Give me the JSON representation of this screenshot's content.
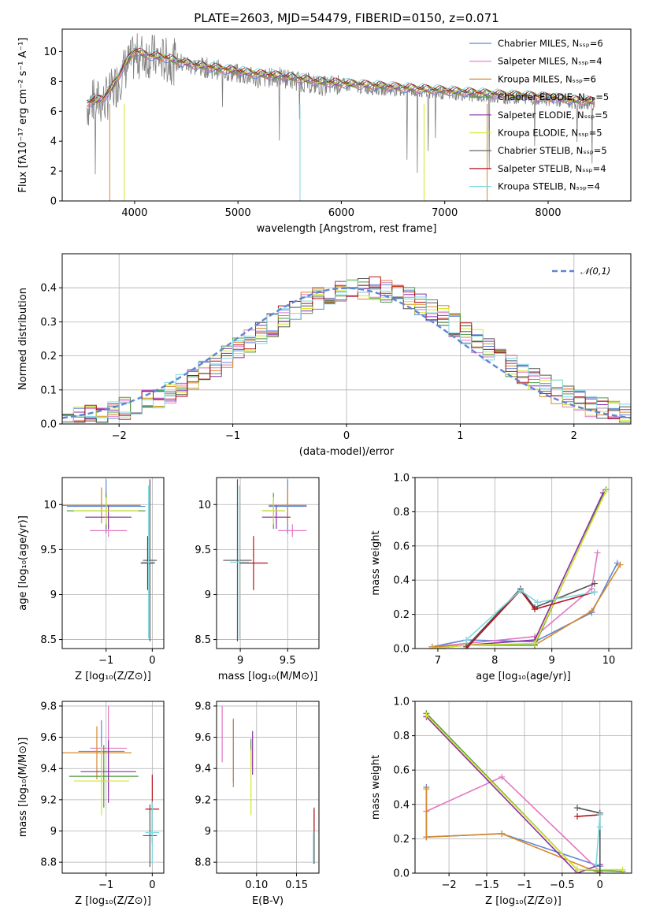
{
  "figure": {
    "title": "PLATE=2603, MJD=54479, FIBERID=0150, z=0.071"
  },
  "chart_data": [
    {
      "id": "spectrum",
      "type": "line",
      "xlabel": "wavelength [Angstrom, rest frame]",
      "ylabel": "Flux [fλ10⁻¹⁷ erg cm⁻² s⁻¹ A⁻¹]",
      "xlim": [
        3300,
        8800
      ],
      "ylim": [
        0,
        11.5
      ],
      "xticks": [
        4000,
        5000,
        6000,
        7000,
        8000
      ],
      "yticks": [
        0,
        2,
        4,
        6,
        8,
        10
      ],
      "grid": false,
      "legend_position": "upper-right",
      "data_trace": {
        "name": "",
        "color": "#808080",
        "x": [
          3540,
          3600,
          3700,
          3800,
          3900,
          4000,
          4100,
          4200,
          4300,
          4400,
          4600,
          4800,
          5000,
          5200,
          5400,
          5600,
          5800,
          6000,
          6200,
          6400,
          6600,
          6800,
          7000,
          7200,
          7400,
          7600,
          7800,
          8000,
          8200,
          8400
        ],
        "y": [
          6.3,
          6.7,
          6.6,
          7.5,
          8.8,
          9.6,
          9.8,
          9.6,
          9.4,
          9.3,
          9.0,
          8.8,
          8.5,
          8.2,
          8.3,
          8.0,
          7.7,
          7.8,
          7.6,
          7.5,
          7.4,
          7.3,
          7.2,
          7.1,
          7.0,
          6.9,
          6.9,
          6.8,
          6.6,
          6.5
        ]
      },
      "series": [
        {
          "name": "Chabrier MILES, Nₛₛₚ=6",
          "color": "#5e86d6"
        },
        {
          "name": "Salpeter MILES, Nₛₛₚ=4",
          "color": "#e377c2"
        },
        {
          "name": "Kroupa MILES, Nₛₛₚ=6",
          "color": "#d6882c"
        },
        {
          "name": "Chabrier ELODIE, Nₛₛₚ=5",
          "color": "#4a9a3e"
        },
        {
          "name": "Salpeter ELODIE, Nₛₛₚ=5",
          "color": "#8b2fa8"
        },
        {
          "name": "Kroupa ELODIE, Nₛₛₚ=5",
          "color": "#d4e62a"
        },
        {
          "name": "Chabrier STELIB, Nₛₛₚ=5",
          "color": "#555555"
        },
        {
          "name": "Salpeter STELIB, Nₛₛₚ=4",
          "color": "#b5121b"
        },
        {
          "name": "Kroupa STELIB, Nₛₛₚ=4",
          "color": "#7fd8e0"
        }
      ],
      "model_x": [
        3540,
        3600,
        3700,
        3800,
        3900,
        4000,
        4100,
        4200,
        4300,
        4400,
        4600,
        4800,
        5000,
        5200,
        5400,
        5600,
        5800,
        6000,
        6200,
        6400,
        6600,
        6800,
        7000,
        7200,
        7400,
        7600,
        7800,
        8000,
        8200,
        8400
      ],
      "model_y": [
        6.4,
        6.5,
        6.7,
        7.6,
        8.9,
        9.9,
        9.6,
        9.5,
        9.4,
        9.2,
        8.9,
        8.7,
        8.5,
        8.3,
        8.2,
        8.0,
        7.8,
        7.7,
        7.6,
        7.5,
        7.4,
        7.3,
        7.2,
        7.1,
        7.0,
        6.9,
        6.85,
        6.75,
        6.6,
        6.5
      ]
    },
    {
      "id": "residuals",
      "type": "line",
      "xlabel": "(data-model)/error",
      "ylabel": "Normed distribution",
      "xlim": [
        -2.5,
        2.5
      ],
      "ylim": [
        0,
        0.5
      ],
      "xticks": [
        -2,
        -1,
        0,
        1,
        2
      ],
      "yticks": [
        0.0,
        0.1,
        0.2,
        0.3,
        0.4
      ],
      "grid": true,
      "legend": [
        {
          "name": "𝒩(0,1)",
          "color": "#5e86d6",
          "style": "dashed"
        }
      ],
      "legend_position": "upper-right",
      "bin_centers": [
        -2.4,
        -2.2,
        -2.0,
        -1.8,
        -1.6,
        -1.4,
        -1.2,
        -1.0,
        -0.8,
        -0.6,
        -0.4,
        -0.2,
        0.0,
        0.2,
        0.4,
        0.6,
        0.8,
        1.0,
        1.2,
        1.4,
        1.6,
        1.8,
        2.0,
        2.2,
        2.4
      ],
      "hist_values": [
        0.02,
        0.035,
        0.055,
        0.085,
        0.115,
        0.16,
        0.2,
        0.25,
        0.29,
        0.32,
        0.34,
        0.37,
        0.39,
        0.43,
        0.41,
        0.37,
        0.32,
        0.27,
        0.22,
        0.17,
        0.12,
        0.08,
        0.05,
        0.035,
        0.02
      ]
    },
    {
      "id": "age-vs-Z",
      "type": "scatter",
      "xlabel": "Z [log₁₀(Z/Z⊙)]",
      "ylabel": "age  [log₁₀(age/yr)]",
      "xlim": [
        -1.95,
        0.25
      ],
      "ylim": [
        8.4,
        10.3
      ],
      "xticks": [
        -1,
        0
      ],
      "yticks": [
        8.5,
        9.0,
        9.5,
        10.0
      ],
      "grid": true,
      "points": [
        {
          "x": -1.0,
          "y": 9.98,
          "xerr": 0.85,
          "yerr": 0.3,
          "color": "#5e86d6"
        },
        {
          "x": -0.95,
          "y": 9.71,
          "xerr": 0.4,
          "yerr": 0.07,
          "color": "#e377c2"
        },
        {
          "x": -1.1,
          "y": 9.99,
          "xerr": 0.85,
          "yerr": 0.2,
          "color": "#d6882c"
        },
        {
          "x": -1.0,
          "y": 9.93,
          "xerr": 0.85,
          "yerr": 0.2,
          "color": "#4a9a3e"
        },
        {
          "x": -0.95,
          "y": 9.86,
          "xerr": 0.5,
          "yerr": 0.13,
          "color": "#8b2fa8"
        },
        {
          "x": -1.0,
          "y": 9.93,
          "xerr": 0.7,
          "yerr": 0.15,
          "color": "#d4e62a"
        },
        {
          "x": -0.05,
          "y": 9.38,
          "xerr": 0.15,
          "yerr": 0.9,
          "color": "#555555"
        },
        {
          "x": -0.1,
          "y": 9.35,
          "xerr": 0.15,
          "yerr": 0.3,
          "color": "#b5121b"
        },
        {
          "x": -0.08,
          "y": 9.36,
          "xerr": 0.15,
          "yerr": 0.85,
          "color": "#7fd8e0"
        }
      ]
    },
    {
      "id": "age-vs-mass",
      "type": "scatter",
      "xlabel": "mass [log₁₀(M/M⊙)]",
      "ylabel": "",
      "xlim": [
        8.75,
        9.83
      ],
      "ylim": [
        8.4,
        10.3
      ],
      "xticks": [
        9.0,
        9.5
      ],
      "yticks": [
        8.5,
        9.0,
        9.5,
        10.0
      ],
      "grid": true,
      "points": [
        {
          "x": 9.5,
          "y": 9.98,
          "xerr": 0.2,
          "yerr": 0.3,
          "color": "#5e86d6"
        },
        {
          "x": 9.55,
          "y": 9.71,
          "xerr": 0.15,
          "yerr": 0.07,
          "color": "#e377c2"
        },
        {
          "x": 9.5,
          "y": 9.99,
          "xerr": 0.2,
          "yerr": 0.2,
          "color": "#d6882c"
        },
        {
          "x": 9.35,
          "y": 9.93,
          "xerr": 0.12,
          "yerr": 0.2,
          "color": "#4a9a3e"
        },
        {
          "x": 9.38,
          "y": 9.86,
          "xerr": 0.15,
          "yerr": 0.13,
          "color": "#8b2fa8"
        },
        {
          "x": 9.35,
          "y": 9.93,
          "xerr": 0.12,
          "yerr": 0.15,
          "color": "#d4e62a"
        },
        {
          "x": 8.97,
          "y": 9.38,
          "xerr": 0.15,
          "yerr": 0.9,
          "color": "#555555"
        },
        {
          "x": 9.14,
          "y": 9.35,
          "xerr": 0.15,
          "yerr": 0.3,
          "color": "#b5121b"
        },
        {
          "x": 8.99,
          "y": 9.36,
          "xerr": 0.1,
          "yerr": 0.85,
          "color": "#7fd8e0"
        }
      ]
    },
    {
      "id": "weight-vs-age",
      "type": "line",
      "xlabel": "age  [log₁₀(age/yr)]",
      "ylabel": "mass weight",
      "xlim": [
        6.6,
        10.4
      ],
      "ylim": [
        0,
        1.0
      ],
      "xticks": [
        7,
        8,
        9,
        10
      ],
      "yticks": [
        0.0,
        0.2,
        0.4,
        0.6,
        0.8,
        1.0
      ],
      "grid": true,
      "series": [
        {
          "color": "#5e86d6",
          "x": [
            6.9,
            7.5,
            8.7,
            9.7,
            10.15
          ],
          "y": [
            0.01,
            0.05,
            0.04,
            0.21,
            0.5
          ]
        },
        {
          "color": "#e377c2",
          "x": [
            6.9,
            7.5,
            8.7,
            9.7,
            9.8
          ],
          "y": [
            0.01,
            0.03,
            0.07,
            0.35,
            0.56
          ]
        },
        {
          "color": "#d6882c",
          "x": [
            6.9,
            7.5,
            8.7,
            9.7,
            10.2
          ],
          "y": [
            0.01,
            0.02,
            0.02,
            0.22,
            0.49
          ]
        },
        {
          "color": "#4a9a3e",
          "x": [
            6.9,
            7.5,
            8.7,
            9.95
          ],
          "y": [
            0.0,
            0.02,
            0.02,
            0.93
          ]
        },
        {
          "color": "#8b2fa8",
          "x": [
            6.9,
            7.5,
            8.7,
            9.9
          ],
          "y": [
            0.0,
            0.02,
            0.05,
            0.91
          ]
        },
        {
          "color": "#d4e62a",
          "x": [
            6.9,
            7.5,
            8.7,
            9.95
          ],
          "y": [
            0.0,
            0.02,
            0.03,
            0.92
          ]
        },
        {
          "color": "#555555",
          "x": [
            7.5,
            8.45,
            8.7,
            9.75
          ],
          "y": [
            0.01,
            0.35,
            0.24,
            0.38
          ]
        },
        {
          "color": "#b5121b",
          "x": [
            7.5,
            8.45,
            8.7,
            9.75
          ],
          "y": [
            0.0,
            0.34,
            0.23,
            0.33
          ]
        },
        {
          "color": "#7fd8e0",
          "x": [
            7.5,
            8.45,
            8.75,
            9.75
          ],
          "y": [
            0.05,
            0.34,
            0.27,
            0.33
          ]
        }
      ]
    },
    {
      "id": "mass-vs-Z",
      "type": "scatter",
      "xlabel": "Z [log₁₀(Z/Z⊙)]",
      "ylabel": "mass [log₁₀(M/M⊙)]",
      "xlim": [
        -1.95,
        0.25
      ],
      "ylim": [
        8.73,
        9.83
      ],
      "xticks": [
        -1,
        0
      ],
      "yticks": [
        8.8,
        9.0,
        9.2,
        9.4,
        9.6,
        9.8
      ],
      "grid": true,
      "points": [
        {
          "x": -1.1,
          "y": 9.51,
          "xerr": 0.5,
          "yerr": 0.2,
          "color": "#5e86d6"
        },
        {
          "x": -0.95,
          "y": 9.53,
          "xerr": 0.4,
          "yerr": 0.27,
          "color": "#e377c2"
        },
        {
          "x": -1.2,
          "y": 9.5,
          "xerr": 0.75,
          "yerr": 0.17,
          "color": "#d6882c"
        },
        {
          "x": -1.05,
          "y": 9.35,
          "xerr": 0.75,
          "yerr": 0.2,
          "color": "#4a9a3e"
        },
        {
          "x": -0.95,
          "y": 9.38,
          "xerr": 0.6,
          "yerr": 0.2,
          "color": "#8b2fa8"
        },
        {
          "x": -1.1,
          "y": 9.32,
          "xerr": 0.6,
          "yerr": 0.22,
          "color": "#d4e62a"
        },
        {
          "x": -0.05,
          "y": 8.97,
          "xerr": 0.15,
          "yerr": 0.2,
          "color": "#555555"
        },
        {
          "x": 0.0,
          "y": 9.14,
          "xerr": 0.15,
          "yerr": 0.22,
          "color": "#b5121b"
        },
        {
          "x": 0.0,
          "y": 8.99,
          "xerr": 0.15,
          "yerr": 0.2,
          "color": "#7fd8e0"
        }
      ]
    },
    {
      "id": "mass-vs-EBV",
      "type": "scatter",
      "xlabel": "E(B-V)",
      "ylabel": "",
      "xlim": [
        0.05,
        0.178
      ],
      "ylim": [
        8.73,
        9.83
      ],
      "xticks": [
        0.1,
        0.15
      ],
      "xtick_labels": [
        "0.10",
        "0.15"
      ],
      "yticks": [
        8.8,
        9.0,
        9.2,
        9.4,
        9.6,
        9.8
      ],
      "grid": true,
      "points": [
        {
          "x": 0.071,
          "y": 9.51,
          "yerr": 0.2,
          "color": "#5e86d6"
        },
        {
          "x": 0.057,
          "y": 9.62,
          "yerr": 0.18,
          "color": "#e377c2"
        },
        {
          "x": 0.071,
          "y": 9.5,
          "yerr": 0.22,
          "color": "#d6882c"
        },
        {
          "x": 0.093,
          "y": 9.5,
          "yerr": 0.09,
          "color": "#4a9a3e"
        },
        {
          "x": 0.095,
          "y": 9.5,
          "yerr": 0.14,
          "color": "#8b2fa8"
        },
        {
          "x": 0.093,
          "y": 9.31,
          "yerr": 0.21,
          "color": "#d4e62a"
        },
        {
          "x": 0.172,
          "y": 8.97,
          "yerr": 0.18,
          "color": "#555555"
        },
        {
          "x": 0.172,
          "y": 9.07,
          "yerr": 0.07,
          "color": "#b5121b"
        },
        {
          "x": 0.171,
          "y": 8.89,
          "yerr": 0.1,
          "color": "#7fd8e0"
        }
      ]
    },
    {
      "id": "weight-vs-Z",
      "type": "line",
      "xlabel": "Z [log₁₀(Z/Z⊙)]",
      "ylabel": "mass weight",
      "xlim": [
        -2.45,
        0.42
      ],
      "ylim": [
        0,
        1.0
      ],
      "xticks": [
        -2.0,
        -1.5,
        -1.0,
        -0.5,
        0.0
      ],
      "yticks": [
        0.0,
        0.2,
        0.4,
        0.6,
        0.8,
        1.0
      ],
      "grid": true,
      "series": [
        {
          "color": "#5e86d6",
          "x": [
            -2.3,
            -2.3,
            -1.3,
            0.0
          ],
          "y": [
            0.5,
            0.21,
            0.23,
            0.04
          ]
        },
        {
          "color": "#e377c2",
          "x": [
            -2.3,
            -1.3,
            0.0
          ],
          "y": [
            0.36,
            0.56,
            0.01
          ]
        },
        {
          "color": "#d6882c",
          "x": [
            -2.3,
            -2.3,
            -1.3,
            0.0
          ],
          "y": [
            0.49,
            0.21,
            0.23,
            0.0
          ]
        },
        {
          "color": "#4a9a3e",
          "x": [
            -2.3,
            -0.3,
            0.3
          ],
          "y": [
            0.93,
            0.02,
            0.01
          ]
        },
        {
          "color": "#8b2fa8",
          "x": [
            -2.3,
            -0.3,
            0.0
          ],
          "y": [
            0.91,
            0.0,
            0.05
          ]
        },
        {
          "color": "#d4e62a",
          "x": [
            -2.3,
            -0.3,
            0.3
          ],
          "y": [
            0.92,
            0.02,
            0.02
          ]
        },
        {
          "color": "#555555",
          "x": [
            -0.3,
            0.0,
            0.0
          ],
          "y": [
            0.38,
            0.35,
            0.0
          ]
        },
        {
          "color": "#b5121b",
          "x": [
            -0.3,
            0.0
          ],
          "y": [
            0.33,
            0.34
          ]
        },
        {
          "color": "#7fd8e0",
          "x": [
            -0.05,
            0.0,
            0.0
          ],
          "y": [
            0.05,
            0.34,
            0.27
          ]
        }
      ]
    }
  ]
}
